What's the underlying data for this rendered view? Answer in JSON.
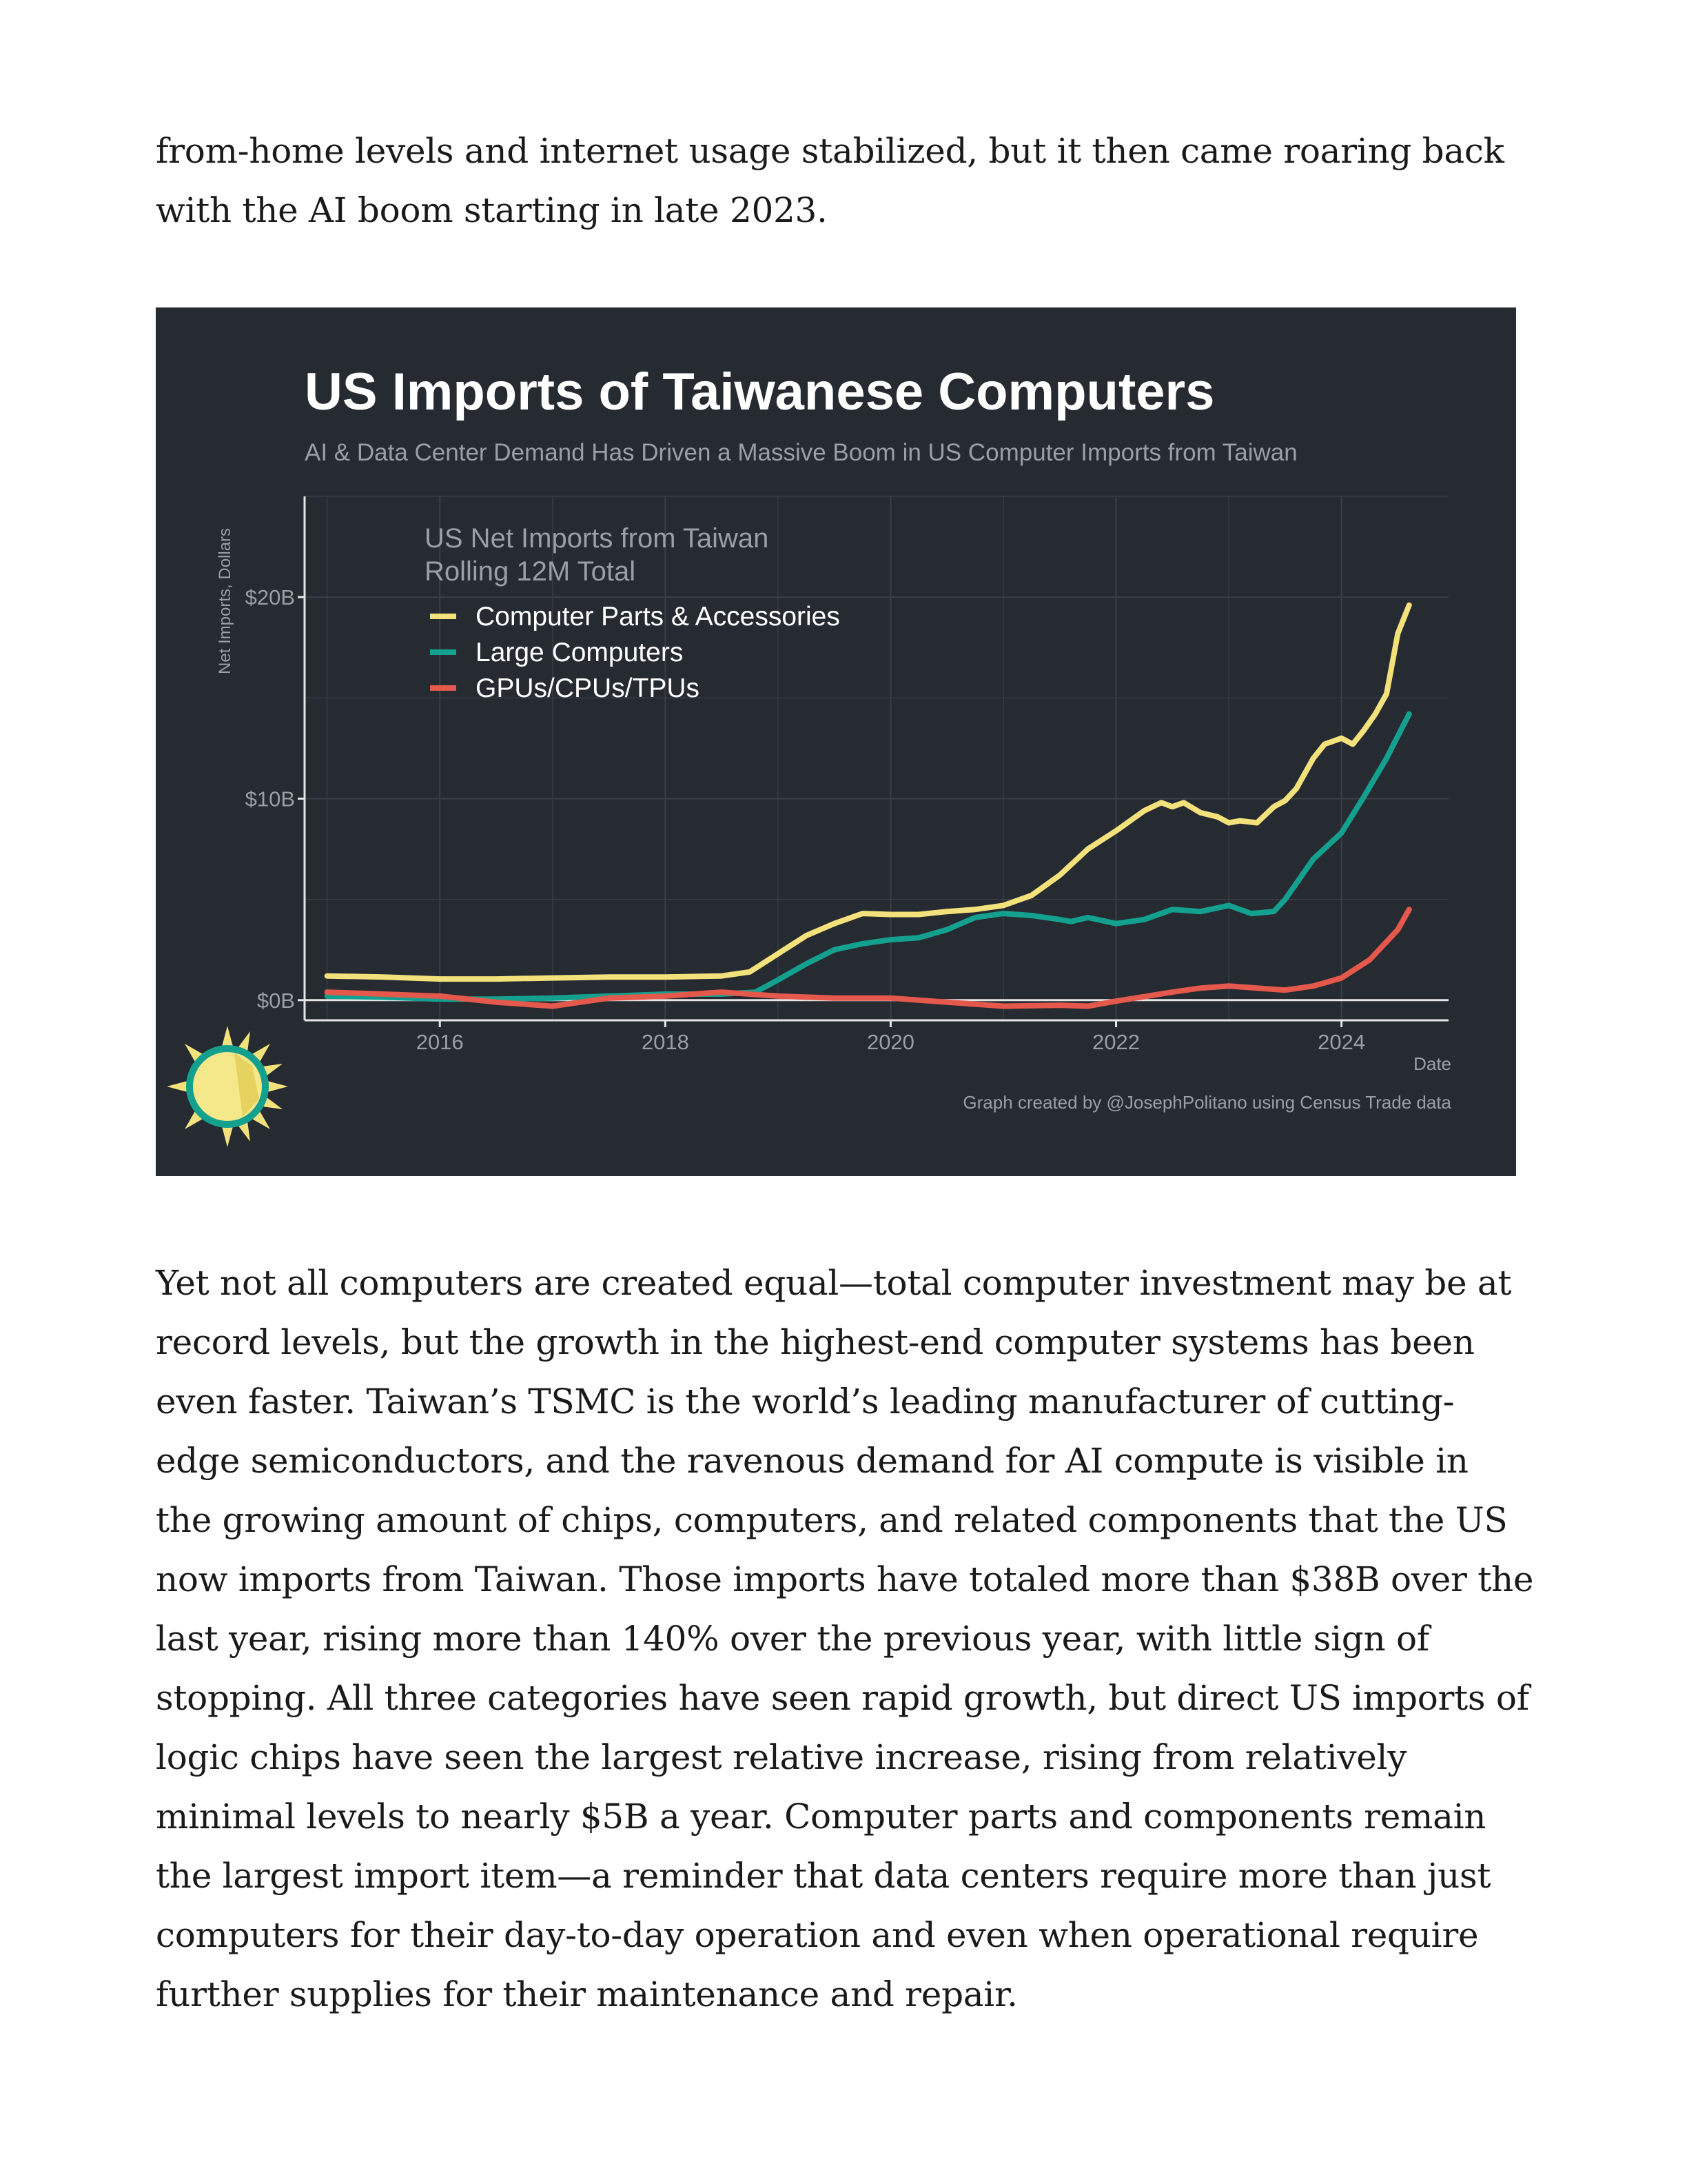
{
  "paragraphs": {
    "before": "from-home levels and internet usage stabilized, but it then came roaring back with the AI boom starting in late 2023.",
    "after": "Yet not all computers are created equal—total computer investment may be at record levels, but the growth in the highest-end computer systems has been even faster. Taiwan’s TSMC is the world’s leading manufacturer of cutting-edge semiconductors, and the ravenous demand for AI compute is visible in the growing amount of chips, computers, and related components that the US now imports from Taiwan. Those imports have totaled more than $38B over the last year, rising more than 140% over the previous year, with little sign of stopping. All three categories have seen rapid growth, but direct US imports of logic chips have seen the largest relative increase, rising from relatively minimal levels to nearly $5B a year. Computer parts and components remain the largest import item—a reminder that data centers require more than just computers for their day-to-day operation and even when operational require further supplies for their maintenance and repair."
  },
  "chart_data": {
    "type": "line",
    "title": "US Imports of Taiwanese Computers",
    "subtitle": "AI & Data Center Demand Has Driven a Massive Boom in US Computer Imports from Taiwan",
    "xlabel": "Date",
    "ylabel": "Net Imports, Dollars",
    "legend_title": [
      "US Net Imports from Taiwan",
      "Rolling 12M Total"
    ],
    "legend_position": "top-left",
    "caption": "Graph created by @JosephPolitano using Census Trade data",
    "xlim": [
      2014.8,
      2024.95
    ],
    "ylim": [
      -1,
      25
    ],
    "x_ticks": [
      2016,
      2018,
      2020,
      2022,
      2024
    ],
    "x_tick_labels": [
      "2016",
      "2018",
      "2020",
      "2022",
      "2024"
    ],
    "y_ticks": [
      0,
      10,
      20
    ],
    "y_tick_labels": [
      "$0B",
      "$10B",
      "$20B"
    ],
    "grid": true,
    "colors": {
      "background": "#262a31",
      "grid": "#3a3f47",
      "axis": "#e6e6e6",
      "tick_text": "#9a9ea5",
      "title": "#ffffff",
      "subtitle": "#9a9ea5",
      "legend_title": "#9a9ea5",
      "legend_text": "#ffffff"
    },
    "series": [
      {
        "name": "Computer Parts & Accessories",
        "color": "#f3e17c",
        "x": [
          2015.0,
          2015.5,
          2016.0,
          2016.5,
          2017.0,
          2017.5,
          2018.0,
          2018.5,
          2018.75,
          2019.0,
          2019.25,
          2019.5,
          2019.75,
          2020.0,
          2020.25,
          2020.5,
          2020.75,
          2021.0,
          2021.25,
          2021.5,
          2021.75,
          2022.0,
          2022.25,
          2022.4,
          2022.5,
          2022.6,
          2022.75,
          2022.9,
          2023.0,
          2023.1,
          2023.25,
          2023.4,
          2023.5,
          2023.6,
          2023.75,
          2023.85,
          2024.0,
          2024.1,
          2024.2,
          2024.3,
          2024.4,
          2024.5,
          2024.6
        ],
        "values": [
          1.2,
          1.15,
          1.05,
          1.05,
          1.1,
          1.15,
          1.15,
          1.2,
          1.4,
          2.3,
          3.2,
          3.8,
          4.3,
          4.25,
          4.25,
          4.4,
          4.5,
          4.7,
          5.2,
          6.2,
          7.5,
          8.4,
          9.4,
          9.8,
          9.6,
          9.8,
          9.3,
          9.1,
          8.8,
          8.9,
          8.8,
          9.6,
          9.9,
          10.5,
          12.0,
          12.7,
          13.0,
          12.7,
          13.4,
          14.2,
          15.2,
          18.2,
          19.6
        ]
      },
      {
        "name": "Large Computers",
        "color": "#14a08e",
        "x": [
          2015.0,
          2015.5,
          2016.0,
          2016.5,
          2017.0,
          2017.5,
          2018.0,
          2018.5,
          2018.8,
          2019.0,
          2019.25,
          2019.5,
          2019.75,
          2020.0,
          2020.25,
          2020.5,
          2020.75,
          2021.0,
          2021.25,
          2021.5,
          2021.6,
          2021.75,
          2022.0,
          2022.25,
          2022.5,
          2022.75,
          2023.0,
          2023.2,
          2023.4,
          2023.5,
          2023.75,
          2024.0,
          2024.2,
          2024.4,
          2024.6
        ],
        "values": [
          0.2,
          0.15,
          0.05,
          0.05,
          0.1,
          0.2,
          0.3,
          0.3,
          0.4,
          1.0,
          1.8,
          2.5,
          2.8,
          3.0,
          3.1,
          3.5,
          4.1,
          4.3,
          4.2,
          4.0,
          3.9,
          4.1,
          3.8,
          4.0,
          4.5,
          4.4,
          4.7,
          4.3,
          4.4,
          5.0,
          7.0,
          8.3,
          10.1,
          12.0,
          14.2
        ]
      },
      {
        "name": "GPUs/CPUs/TPUs",
        "color": "#e5584c",
        "x": [
          2015.0,
          2015.5,
          2016.0,
          2016.5,
          2017.0,
          2017.5,
          2018.0,
          2018.5,
          2019.0,
          2019.5,
          2020.0,
          2020.5,
          2021.0,
          2021.5,
          2021.75,
          2022.0,
          2022.5,
          2022.75,
          2023.0,
          2023.25,
          2023.5,
          2023.75,
          2024.0,
          2024.25,
          2024.5,
          2024.6
        ],
        "values": [
          0.4,
          0.3,
          0.2,
          -0.1,
          -0.3,
          0.1,
          0.2,
          0.4,
          0.2,
          0.1,
          0.1,
          -0.1,
          -0.3,
          -0.25,
          -0.3,
          -0.05,
          0.4,
          0.6,
          0.7,
          0.6,
          0.5,
          0.7,
          1.1,
          2.0,
          3.5,
          4.5
        ]
      }
    ]
  }
}
